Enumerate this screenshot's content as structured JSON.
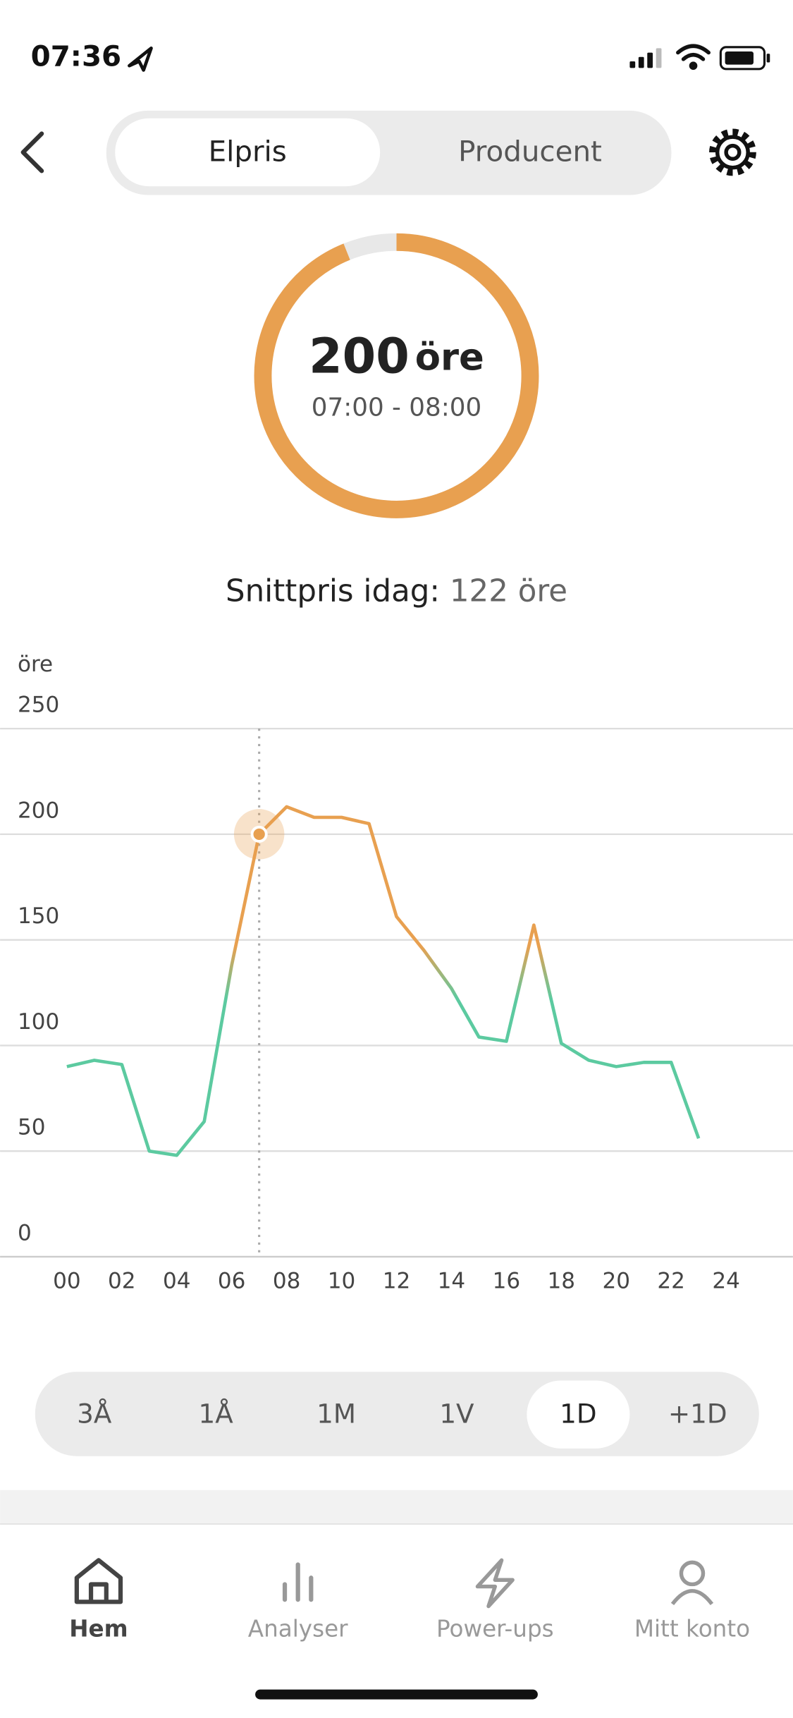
{
  "status_bar": {
    "time": "07:36"
  },
  "tabs": {
    "items": [
      "Elpris",
      "Producent"
    ],
    "selected": 0
  },
  "gauge": {
    "value": 200,
    "unit": "öre",
    "period": "07:00 - 08:00",
    "color": "#e8a050",
    "track_color": "#e8e8e8"
  },
  "average": {
    "label": "Snittpris idag:",
    "value": 122,
    "unit": "öre"
  },
  "chart_data": {
    "type": "line",
    "y_label": "öre",
    "x": [
      0,
      1,
      2,
      3,
      4,
      5,
      6,
      7,
      8,
      9,
      10,
      11,
      12,
      13,
      14,
      15,
      16,
      17,
      18,
      19,
      20,
      21,
      22,
      23
    ],
    "values": [
      90,
      93,
      91,
      50,
      48,
      64,
      138,
      200,
      213,
      208,
      208,
      205,
      161,
      145,
      127,
      104,
      102,
      157,
      101,
      93,
      90,
      92,
      92,
      56
    ],
    "colors": {
      "above_average": "#e8a050",
      "below_average": "#5ccaa0"
    },
    "current_hour": 7,
    "xlim": [
      0,
      24
    ],
    "xticks": [
      {
        "value": 0,
        "label": "00"
      },
      {
        "value": 2,
        "label": "02"
      },
      {
        "value": 4,
        "label": "04"
      },
      {
        "value": 6,
        "label": "06"
      },
      {
        "value": 8,
        "label": "08"
      },
      10,
      12,
      14,
      16,
      18,
      20,
      22,
      24
    ],
    "ylim": [
      0,
      250
    ],
    "yticks": [
      0,
      50,
      100,
      150,
      200,
      250
    ],
    "grid": true
  },
  "ranges": {
    "items": [
      "3Å",
      "1Å",
      "1M",
      "1V",
      "1D",
      "+1D"
    ],
    "selected": 4
  },
  "nav": {
    "items": [
      "Hem",
      "Analyser",
      "Power-ups",
      "Mitt konto"
    ],
    "selected": 0
  }
}
